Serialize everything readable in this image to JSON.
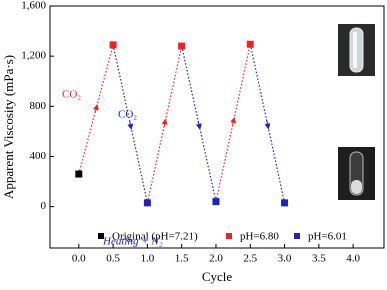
{
  "chart_data": {
    "type": "scatter",
    "x_label": "Cycle",
    "y_label": "Apparent Viscosity (mPa·s)",
    "xlim": [
      -0.42,
      4.45
    ],
    "ylim": [
      -330,
      1600
    ],
    "xticks": [
      {
        "value": 0,
        "label": "0.0"
      },
      {
        "value": 0.5,
        "label": "0.5"
      },
      {
        "value": 1,
        "label": "1.0"
      },
      {
        "value": 1.5,
        "label": "1.5"
      },
      {
        "value": 2,
        "label": "2.0"
      },
      {
        "value": 2.5,
        "label": "2.5"
      },
      {
        "value": 3,
        "label": "3.0"
      },
      {
        "value": 3.5,
        "label": "3.5"
      },
      {
        "value": 4,
        "label": "4.0"
      }
    ],
    "yticks": [
      0,
      400,
      800,
      {
        "value": 1200,
        "label": "1,200"
      },
      {
        "value": 1600,
        "label": "1,600"
      }
    ],
    "series": [
      {
        "name": "Original (pH=7.21)",
        "color": "#000000",
        "x": [
          0
        ],
        "values": [
          260
        ]
      },
      {
        "name": "pH=6.80",
        "color": "#ee2222",
        "x": [
          0.5,
          1.5,
          2.5
        ],
        "values": [
          1290,
          1280,
          1295
        ]
      },
      {
        "name": "pH=6.01",
        "color": "#2222bb",
        "x": [
          1,
          2,
          3
        ],
        "values": [
          30,
          40,
          30
        ]
      }
    ],
    "annotations": [
      {
        "text": "CO₂",
        "color": "#ee2222"
      },
      {
        "text": "CO₂",
        "color": "#2222bb"
      },
      {
        "text": "Heating + N₂",
        "color": "#2222bb"
      }
    ]
  }
}
